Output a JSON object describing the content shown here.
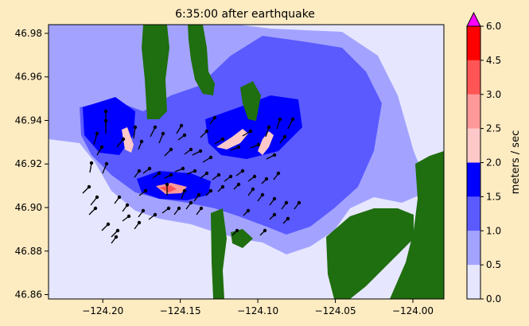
{
  "chart_data": {
    "type": "heatmap",
    "title": "6:35:00 after earthquake",
    "xlabel": "",
    "ylabel": "",
    "xlim": [
      -124.235,
      -123.98
    ],
    "ylim": [
      46.858,
      46.984
    ],
    "xticks": [
      -124.2,
      -124.15,
      -124.1,
      -124.05,
      -124.0
    ],
    "xtick_labels": [
      "−124.20",
      "−124.15",
      "−124.10",
      "−124.05",
      "−124.00"
    ],
    "yticks": [
      46.86,
      46.88,
      46.9,
      46.92,
      46.94,
      46.96,
      46.98
    ],
    "ytick_labels": [
      "46.86",
      "46.88",
      "46.90",
      "46.92",
      "46.94",
      "46.96",
      "46.98"
    ],
    "colorbar": {
      "label": "meters / sec",
      "levels": [
        0.0,
        0.5,
        1.0,
        1.5,
        2.0,
        2.5,
        3.0,
        4.5,
        6.0
      ],
      "level_labels": [
        "0.0",
        "0.5",
        "1.0",
        "1.5",
        "2.0",
        "2.5",
        "3.0",
        "4.5",
        "6.0"
      ],
      "colors": [
        "#e6e6ff",
        "#a3a3ff",
        "#5a5aff",
        "#0000ff",
        "#ffc8c8",
        "#ff9999",
        "#ff5555",
        "#ff0000"
      ],
      "extend_max_color": "#ff00ff"
    },
    "land_color": "#1f6e0f",
    "arrow_color": "#000000"
  }
}
